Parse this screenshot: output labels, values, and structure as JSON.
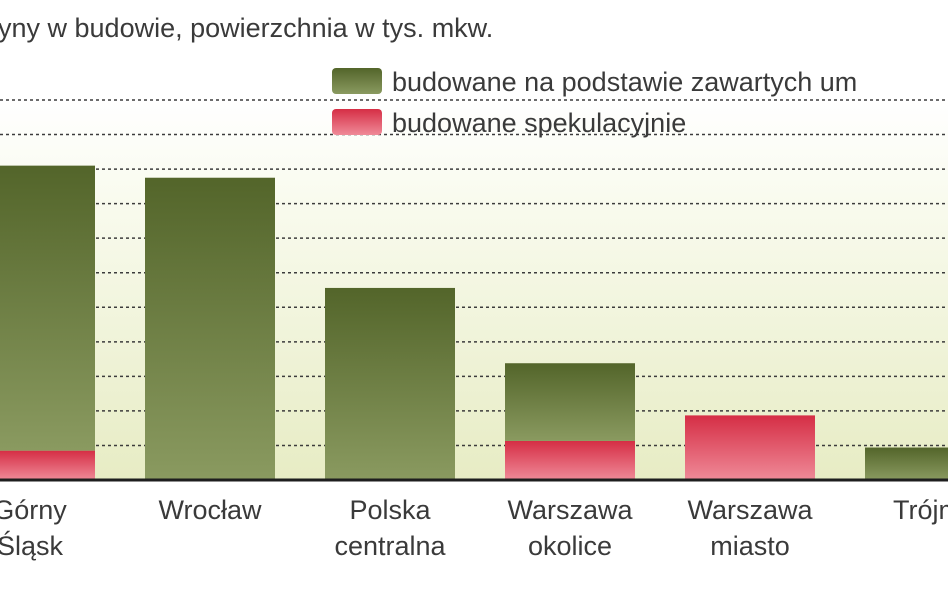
{
  "chart_data": {
    "type": "bar",
    "stacked": true,
    "subtitle": "yny w budowie, powierzchnia w tys. mkw.",
    "categories": [
      [
        "Górny",
        "Śląsk"
      ],
      [
        "Wrocław"
      ],
      [
        "Polska",
        "centralna"
      ],
      [
        "Warszawa",
        "okolice"
      ],
      [
        "Warszawa",
        "miasto"
      ],
      [
        "Trójmi"
      ]
    ],
    "series": [
      {
        "name": "budowane spekulacyjnie",
        "color": "#d8384c",
        "values": [
          8.5,
          0,
          0,
          11.3,
          18.7,
          0
        ]
      },
      {
        "name": "budowane na podstawie zawartych um",
        "color": "#5a6b2a",
        "values": [
          82.5,
          87.5,
          55.6,
          22.5,
          0,
          9.4
        ]
      }
    ],
    "ylim": [
      0,
      110
    ],
    "grid": true,
    "legend_position": "top-right"
  }
}
